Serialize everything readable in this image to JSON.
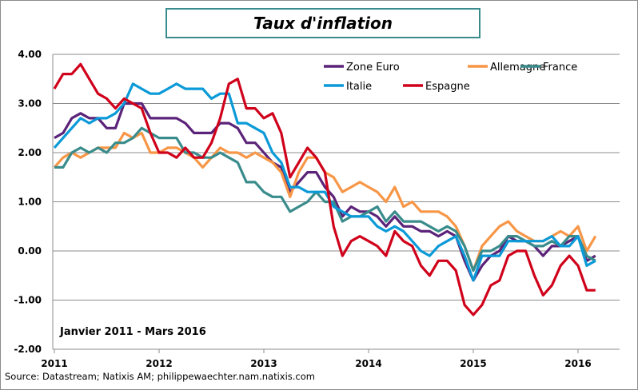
{
  "chart_data": {
    "type": "line",
    "title": "Taux d'inflation",
    "annotation": "Janvier 2011 - Mars 2016",
    "source": "Source: Datastream; Natixis AM; philippewaechter.nam.natixis.com",
    "xlabel": "",
    "ylabel": "",
    "x_start": "2011-01",
    "x_end": "2016-03",
    "frequency": "monthly",
    "x_ticks": [
      "2011",
      "2012",
      "2013",
      "2014",
      "2015",
      "2016"
    ],
    "y_ticks": [
      "4.00",
      "3.00",
      "2.00",
      "1.00",
      "0.00",
      "-1.00",
      "-2.00"
    ],
    "ylim": [
      -2,
      4
    ],
    "grid": true,
    "legend_position": "top-right",
    "series": [
      {
        "name": "Zone Euro",
        "color": "#5b2379",
        "values": [
          2.3,
          2.4,
          2.7,
          2.8,
          2.7,
          2.7,
          2.5,
          2.5,
          3.0,
          3.0,
          3.0,
          2.7,
          2.7,
          2.7,
          2.7,
          2.6,
          2.4,
          2.4,
          2.4,
          2.6,
          2.6,
          2.5,
          2.2,
          2.2,
          2.0,
          1.8,
          1.7,
          1.2,
          1.4,
          1.6,
          1.6,
          1.3,
          1.1,
          0.7,
          0.9,
          0.8,
          0.8,
          0.7,
          0.5,
          0.7,
          0.5,
          0.5,
          0.4,
          0.4,
          0.3,
          0.4,
          0.3,
          -0.2,
          -0.6,
          -0.3,
          -0.1,
          0.0,
          0.3,
          0.2,
          0.2,
          0.1,
          -0.1,
          0.1,
          0.1,
          0.2,
          0.3,
          -0.2,
          -0.1
        ]
      },
      {
        "name": "Allemagne",
        "color": "#f79646",
        "values": [
          1.7,
          1.9,
          2.0,
          1.9,
          2.0,
          2.1,
          2.1,
          2.1,
          2.4,
          2.3,
          2.4,
          2.0,
          2.0,
          2.1,
          2.1,
          2.0,
          1.9,
          1.7,
          1.9,
          2.1,
          2.0,
          2.0,
          1.9,
          2.0,
          1.9,
          1.8,
          1.6,
          1.1,
          1.6,
          1.9,
          1.9,
          1.6,
          1.5,
          1.2,
          1.3,
          1.4,
          1.3,
          1.2,
          1.0,
          1.3,
          0.9,
          1.0,
          0.8,
          0.8,
          0.8,
          0.7,
          0.5,
          0.1,
          -0.4,
          0.1,
          0.3,
          0.5,
          0.6,
          0.4,
          0.3,
          0.2,
          0.2,
          0.3,
          0.4,
          0.3,
          0.5,
          0.0,
          0.3
        ]
      },
      {
        "name": "France",
        "color": "#3a8c8c",
        "values": [
          1.7,
          1.7,
          2.0,
          2.1,
          2.0,
          2.1,
          2.0,
          2.2,
          2.2,
          2.3,
          2.5,
          2.4,
          2.3,
          2.3,
          2.3,
          2.0,
          2.0,
          1.9,
          1.9,
          2.0,
          1.9,
          1.8,
          1.4,
          1.4,
          1.2,
          1.1,
          1.1,
          0.8,
          0.9,
          1.0,
          1.2,
          1.0,
          1.0,
          0.6,
          0.7,
          0.7,
          0.8,
          0.9,
          0.6,
          0.8,
          0.6,
          0.6,
          0.6,
          0.5,
          0.4,
          0.5,
          0.4,
          0.1,
          -0.4,
          0.0,
          0.0,
          0.1,
          0.3,
          0.3,
          0.2,
          0.1,
          0.1,
          0.2,
          0.1,
          0.3,
          0.3,
          -0.1,
          -0.2
        ]
      },
      {
        "name": "Italie",
        "color": "#0b9ad8",
        "values": [
          2.1,
          2.3,
          2.5,
          2.7,
          2.6,
          2.7,
          2.7,
          2.8,
          3.0,
          3.4,
          3.3,
          3.2,
          3.2,
          3.3,
          3.4,
          3.3,
          3.3,
          3.3,
          3.1,
          3.2,
          3.2,
          2.6,
          2.6,
          2.5,
          2.4,
          2.0,
          1.8,
          1.3,
          1.3,
          1.2,
          1.2,
          1.2,
          0.9,
          0.8,
          0.7,
          0.7,
          0.7,
          0.5,
          0.4,
          0.5,
          0.4,
          0.2,
          0.0,
          -0.1,
          0.1,
          0.2,
          0.3,
          -0.1,
          -0.6,
          -0.1,
          -0.1,
          -0.1,
          0.2,
          0.2,
          0.2,
          0.2,
          0.2,
          0.3,
          0.1,
          0.1,
          0.3,
          -0.3,
          -0.2
        ]
      },
      {
        "name": "Espagne",
        "color": "#d0021b",
        "values": [
          3.3,
          3.6,
          3.6,
          3.8,
          3.5,
          3.2,
          3.1,
          2.9,
          3.1,
          3.0,
          2.9,
          2.4,
          2.0,
          2.0,
          1.9,
          2.1,
          1.9,
          1.9,
          2.2,
          2.7,
          3.4,
          3.5,
          2.9,
          2.9,
          2.7,
          2.8,
          2.4,
          1.5,
          1.8,
          2.1,
          1.9,
          1.6,
          0.5,
          -0.1,
          0.2,
          0.3,
          0.2,
          0.1,
          -0.1,
          0.4,
          0.2,
          0.1,
          -0.3,
          -0.5,
          -0.2,
          -0.2,
          -0.4,
          -1.1,
          -1.3,
          -1.1,
          -0.7,
          -0.6,
          -0.1,
          0.0,
          0.0,
          -0.5,
          -0.9,
          -0.7,
          -0.3,
          -0.1,
          -0.3,
          -0.8,
          -0.8
        ]
      }
    ]
  }
}
